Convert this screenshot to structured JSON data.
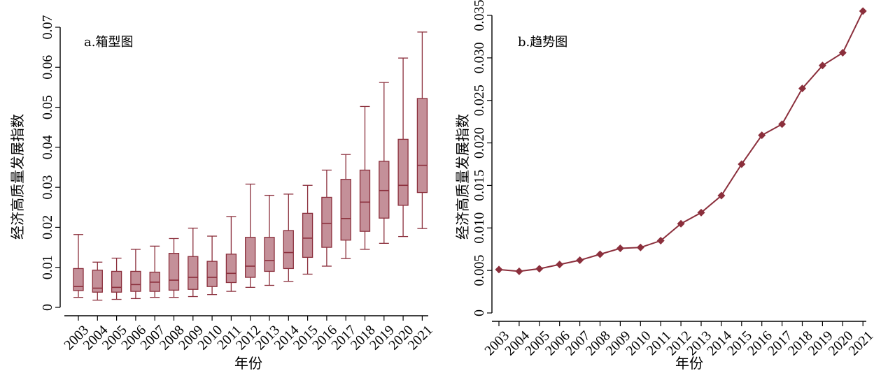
{
  "colors": {
    "series": "#8B2F3C",
    "box_fill": "#C49099"
  },
  "chart_data": [
    {
      "type": "box",
      "title": "a.箱型图",
      "xlabel": "年份",
      "ylabel": "经济高质量发展指数",
      "ylim": [
        0,
        0.07
      ],
      "yticks": [
        "0",
        "0.01",
        "0.02",
        "0.03",
        "0.04",
        "0.05",
        "0.06",
        "0.07"
      ],
      "grid": false,
      "categories": [
        "2003",
        "2004",
        "2005",
        "2006",
        "2007",
        "2008",
        "2009",
        "2010",
        "2011",
        "2012",
        "2013",
        "2014",
        "2015",
        "2016",
        "2017",
        "2018",
        "2019",
        "2020",
        "2021"
      ],
      "boxes": [
        {
          "min": 0.0025,
          "q1": 0.0042,
          "median": 0.0052,
          "q3": 0.0097,
          "max": 0.0182
        },
        {
          "min": 0.0018,
          "q1": 0.0038,
          "median": 0.0048,
          "q3": 0.0093,
          "max": 0.0113
        },
        {
          "min": 0.002,
          "q1": 0.0038,
          "median": 0.005,
          "q3": 0.009,
          "max": 0.0123
        },
        {
          "min": 0.0022,
          "q1": 0.004,
          "median": 0.0057,
          "q3": 0.009,
          "max": 0.0145
        },
        {
          "min": 0.0025,
          "q1": 0.004,
          "median": 0.0063,
          "q3": 0.0088,
          "max": 0.0153
        },
        {
          "min": 0.0025,
          "q1": 0.0043,
          "median": 0.0068,
          "q3": 0.0135,
          "max": 0.0172
        },
        {
          "min": 0.0027,
          "q1": 0.0045,
          "median": 0.0075,
          "q3": 0.0127,
          "max": 0.0198
        },
        {
          "min": 0.0032,
          "q1": 0.0052,
          "median": 0.0075,
          "q3": 0.0115,
          "max": 0.0178
        },
        {
          "min": 0.004,
          "q1": 0.0062,
          "median": 0.0085,
          "q3": 0.0133,
          "max": 0.0227
        },
        {
          "min": 0.005,
          "q1": 0.0075,
          "median": 0.0103,
          "q3": 0.0175,
          "max": 0.0308
        },
        {
          "min": 0.0055,
          "q1": 0.009,
          "median": 0.0117,
          "q3": 0.0175,
          "max": 0.028
        },
        {
          "min": 0.0065,
          "q1": 0.0097,
          "median": 0.0137,
          "q3": 0.0192,
          "max": 0.0283
        },
        {
          "min": 0.0083,
          "q1": 0.0125,
          "median": 0.0173,
          "q3": 0.0235,
          "max": 0.0305
        },
        {
          "min": 0.0103,
          "q1": 0.015,
          "median": 0.021,
          "q3": 0.0275,
          "max": 0.0343
        },
        {
          "min": 0.0122,
          "q1": 0.0168,
          "median": 0.0222,
          "q3": 0.032,
          "max": 0.0382
        },
        {
          "min": 0.0145,
          "q1": 0.019,
          "median": 0.0263,
          "q3": 0.0343,
          "max": 0.0502
        },
        {
          "min": 0.016,
          "q1": 0.0223,
          "median": 0.0292,
          "q3": 0.0365,
          "max": 0.0562
        },
        {
          "min": 0.0177,
          "q1": 0.0255,
          "median": 0.0305,
          "q3": 0.042,
          "max": 0.0623
        },
        {
          "min": 0.0197,
          "q1": 0.0287,
          "median": 0.0355,
          "q3": 0.0522,
          "max": 0.0688
        }
      ]
    },
    {
      "type": "line",
      "title": "b.趋势图",
      "xlabel": "年份",
      "ylabel": "经济高质量发展指数",
      "ylim": [
        0,
        0.035
      ],
      "yticks": [
        "0",
        "0.005",
        "0.010",
        "0.015",
        "0.020",
        "0.025",
        "0.030",
        "0.035"
      ],
      "grid": false,
      "marker": "diamond",
      "categories": [
        "2003",
        "2004",
        "2005",
        "2006",
        "2007",
        "2008",
        "2009",
        "2010",
        "2011",
        "2012",
        "2013",
        "2014",
        "2015",
        "2016",
        "2017",
        "2018",
        "2019",
        "2020",
        "2021"
      ],
      "values": [
        0.0051,
        0.0049,
        0.0052,
        0.0057,
        0.0062,
        0.0069,
        0.0076,
        0.0077,
        0.0085,
        0.0105,
        0.0118,
        0.0138,
        0.0175,
        0.0209,
        0.0222,
        0.0264,
        0.0291,
        0.0306,
        0.0355
      ]
    }
  ]
}
